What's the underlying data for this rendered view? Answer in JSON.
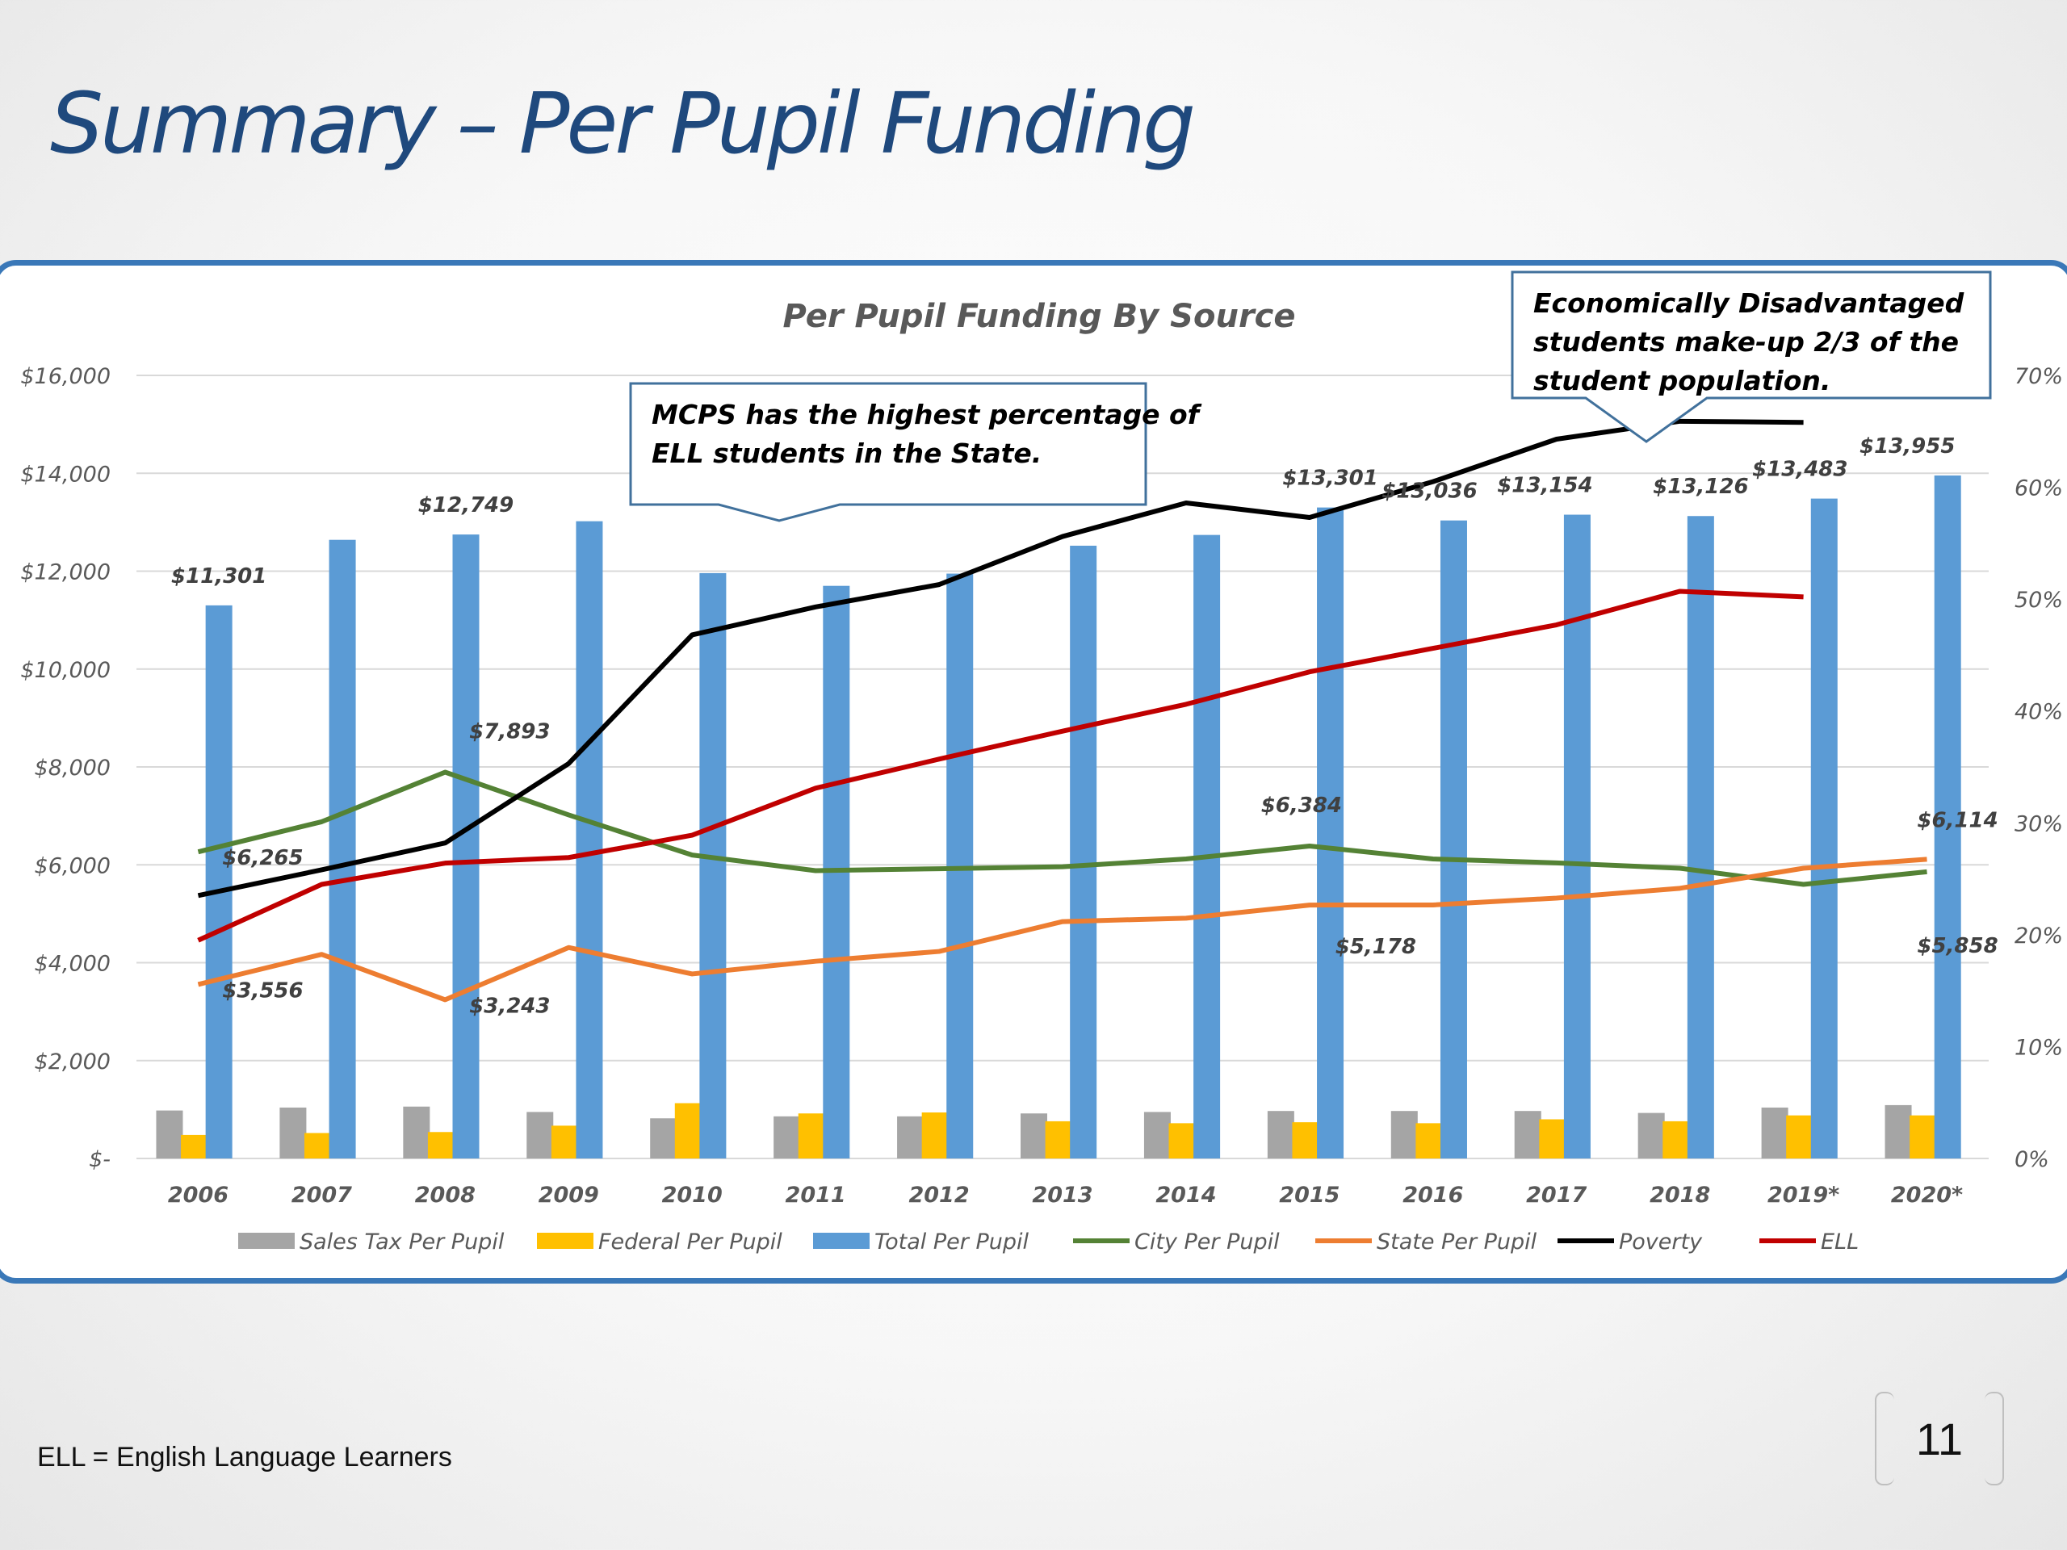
{
  "slide": {
    "title": "Summary – Per Pupil Funding",
    "footnote": "ELL = English Language Learners",
    "page_number": "11"
  },
  "colors": {
    "title": "#1f497d",
    "border": "#3a78b8",
    "sales_tax": "#a5a5a5",
    "federal": "#ffc000",
    "total": "#5b9bd5",
    "city": "#548235",
    "state": "#ed7d31",
    "poverty": "#000000",
    "ell": "#c00000"
  },
  "chart_data": {
    "type": "bar",
    "title": "Per Pupil Funding By Source",
    "categories": [
      "2006",
      "2007",
      "2008",
      "2009",
      "2010",
      "2011",
      "2012",
      "2013",
      "2014",
      "2015",
      "2016",
      "2017",
      "2018",
      "2019*",
      "2020*"
    ],
    "y_left": {
      "range": [
        0,
        16000
      ],
      "ticks": [
        "$-",
        "$2,000",
        "$4,000",
        "$6,000",
        "$8,000",
        "$10,000",
        "$12,000",
        "$14,000",
        "$16,000"
      ]
    },
    "y_right": {
      "range": [
        0,
        70
      ],
      "ticks": [
        "0%",
        "10%",
        "20%",
        "30%",
        "40%",
        "50%",
        "60%",
        "70%"
      ]
    },
    "grid": true,
    "legend_position": "bottom",
    "bar_series": [
      {
        "name": "Sales Tax Per Pupil",
        "color": "#a5a5a5",
        "values": [
          980,
          1040,
          1060,
          950,
          820,
          860,
          860,
          920,
          950,
          970,
          970,
          970,
          930,
          1040,
          1090
        ]
      },
      {
        "name": "Federal Per Pupil",
        "color": "#ffc000",
        "values": [
          480,
          520,
          540,
          670,
          1130,
          920,
          940,
          760,
          720,
          740,
          720,
          800,
          760,
          880,
          880
        ]
      },
      {
        "name": "Total Per Pupil",
        "color": "#5b9bd5",
        "values": [
          11301,
          12640,
          12749,
          13020,
          11960,
          11700,
          11950,
          12520,
          12740,
          13301,
          13036,
          13154,
          13126,
          13483,
          13955
        ]
      }
    ],
    "line_series": [
      {
        "name": "City Per Pupil",
        "color": "#548235",
        "axis": "left",
        "values": [
          6265,
          6880,
          7893,
          7020,
          6200,
          5880,
          5920,
          5960,
          6120,
          6384,
          6120,
          6040,
          5930,
          5600,
          5858
        ]
      },
      {
        "name": "State Per Pupil",
        "color": "#ed7d31",
        "axis": "left",
        "values": [
          3556,
          4170,
          3243,
          4310,
          3770,
          4030,
          4230,
          4840,
          4910,
          5178,
          5180,
          5320,
          5520,
          5930,
          6114
        ]
      },
      {
        "name": "Poverty",
        "color": "#000000",
        "axis": "right",
        "values": [
          23.5,
          25.8,
          28.2,
          35.3,
          46.8,
          49.3,
          51.3,
          55.6,
          58.6,
          57.3,
          60.5,
          64.3,
          65.9,
          65.8,
          null
        ]
      },
      {
        "name": "ELL",
        "color": "#c00000",
        "axis": "right",
        "values": [
          19.5,
          24.5,
          26.4,
          26.9,
          28.9,
          33.1,
          35.7,
          38.2,
          40.6,
          43.5,
          45.6,
          47.7,
          50.7,
          50.2,
          null
        ]
      }
    ],
    "data_labels": [
      {
        "series": "Total Per Pupil",
        "index": 0,
        "text": "$11,301"
      },
      {
        "series": "Total Per Pupil",
        "index": 2,
        "text": "$12,749"
      },
      {
        "series": "Total Per Pupil",
        "index": 9,
        "text": "$13,301"
      },
      {
        "series": "Total Per Pupil",
        "index": 10,
        "text": "$13,036"
      },
      {
        "series": "Total Per Pupil",
        "index": 11,
        "text": "$13,154"
      },
      {
        "series": "Total Per Pupil",
        "index": 12,
        "text": "$13,126"
      },
      {
        "series": "Total Per Pupil",
        "index": 13,
        "text": "$13,483"
      },
      {
        "series": "Total Per Pupil",
        "index": 14,
        "text": "$13,955"
      },
      {
        "series": "City Per Pupil",
        "index": 0,
        "text": "$6,265"
      },
      {
        "series": "City Per Pupil",
        "index": 2,
        "text": "$7,893"
      },
      {
        "series": "City Per Pupil",
        "index": 9,
        "text": "$6,384"
      },
      {
        "series": "City Per Pupil",
        "index": 14,
        "text": "$5,858"
      },
      {
        "series": "State Per Pupil",
        "index": 0,
        "text": "$3,556"
      },
      {
        "series": "State Per Pupil",
        "index": 2,
        "text": "$3,243"
      },
      {
        "series": "State Per Pupil",
        "index": 9,
        "text": "$5,178"
      },
      {
        "series": "State Per Pupil",
        "index": 14,
        "text": "$6,114"
      }
    ],
    "annotations": [
      {
        "text_lines": [
          "MCPS has the highest percentage of",
          "ELL students in the State."
        ],
        "points_to": "ELL"
      },
      {
        "text_lines": [
          "Economically Disadvantaged",
          "students make-up 2/3 of the",
          "student population."
        ],
        "points_to": "Poverty"
      }
    ]
  }
}
